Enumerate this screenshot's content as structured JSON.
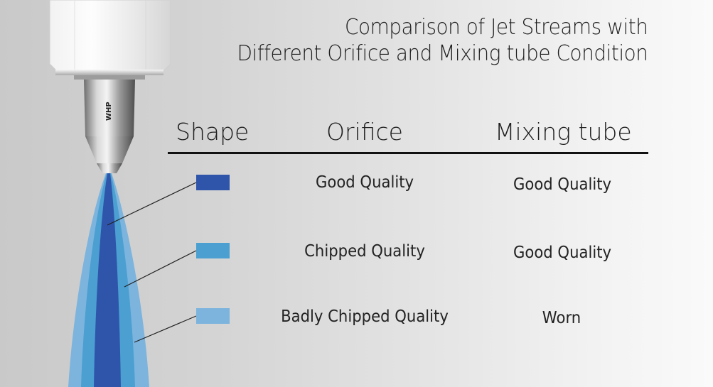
{
  "title": {
    "line1": "Comparison of Jet Streams with",
    "line2": "Different Orifice and Mixing tube Condition"
  },
  "nozzle_label": "WHP",
  "headers": {
    "shape": "Shape",
    "orifice": "Orifice",
    "mixing_tube": "Mixing tube"
  },
  "rows": [
    {
      "orifice": "Good Quality",
      "mixing_tube": "Good Quality",
      "shape_color": "#2f55ab"
    },
    {
      "orifice": "Chipped Quality",
      "mixing_tube": "Good Quality",
      "shape_color": "#4b9fd1"
    },
    {
      "orifice": "Badly Chipped Quality",
      "mixing_tube": "Worn",
      "shape_color": "#7cb4de"
    }
  ]
}
